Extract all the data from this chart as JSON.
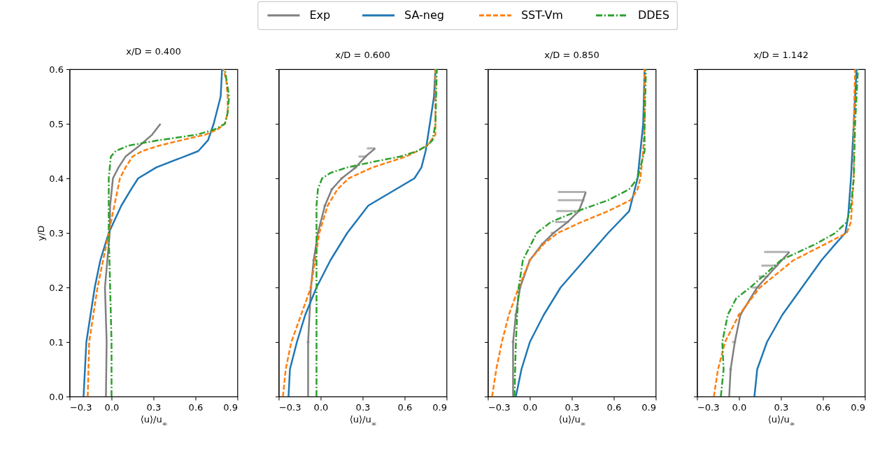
{
  "chart_data": [
    {
      "type": "line",
      "title": "x/D = 0.400",
      "xlabel": "⟨u⟩/u$_{∞}$",
      "ylabel": "y/D",
      "legend": "top",
      "grid": false,
      "xlim": [
        -0.3,
        0.9
      ],
      "xticks": [
        {
          "value": -0.3,
          "label": "−0.3"
        },
        {
          "value": 0,
          "label": "0.0"
        },
        {
          "value": 0.3,
          "label": "0.3"
        },
        {
          "value": 0.6,
          "label": "0.6"
        },
        {
          "value": 0.9,
          "label": "0.9"
        }
      ],
      "ylim": [
        0,
        0.6
      ],
      "yticks": [
        {
          "value": 0,
          "label": "0.0"
        },
        {
          "value": 0.1,
          "label": "0.1"
        },
        {
          "value": 0.2,
          "label": "0.2"
        },
        {
          "value": 0.3,
          "label": "0.3"
        },
        {
          "value": 0.4,
          "label": "0.4"
        },
        {
          "value": 0.5,
          "label": "0.5"
        },
        {
          "value": 0.6,
          "label": "0.6"
        }
      ],
      "series": [
        {
          "name": "Exp",
          "color": "#7f7f7f",
          "line_style": "solid",
          "x": [
            -0.04,
            -0.035,
            -0.047,
            -0.03,
            -0.013,
            -0.01,
            0.01,
            0.05,
            0.1,
            0.2,
            0.29,
            0.35
          ],
          "values": [
            0,
            0.1,
            0.2,
            0.25,
            0.3,
            0.35,
            0.4,
            0.42,
            0.44,
            0.46,
            0.48,
            0.5
          ]
        },
        {
          "name": "SA-neg",
          "color": "#1f77b4",
          "line_style": "solid",
          "x": [
            -0.2,
            -0.18,
            -0.12,
            -0.08,
            -0.02,
            0.07,
            0.14,
            0.19,
            0.32,
            0.52,
            0.62,
            0.69,
            0.73,
            0.78,
            0.79
          ],
          "values": [
            0,
            0.1,
            0.2,
            0.25,
            0.3,
            0.35,
            0.38,
            0.4,
            0.42,
            0.44,
            0.45,
            0.47,
            0.5,
            0.55,
            0.6
          ]
        },
        {
          "name": "SST-Vm",
          "color": "#ff7f0e",
          "line_style": "dashed",
          "x": [
            -0.17,
            -0.16,
            -0.1,
            -0.06,
            -0.02,
            0.02,
            0.06,
            0.1,
            0.15,
            0.22,
            0.34,
            0.5,
            0.67,
            0.76,
            0.81,
            0.83,
            0.83,
            0.82,
            0.8
          ],
          "values": [
            0,
            0.1,
            0.2,
            0.25,
            0.3,
            0.35,
            0.4,
            0.42,
            0.44,
            0.45,
            0.46,
            0.47,
            0.48,
            0.49,
            0.5,
            0.52,
            0.55,
            0.58,
            0.6
          ]
        },
        {
          "name": "DDES",
          "color": "#2ca02c",
          "line_style": "dashdot",
          "x": [
            0,
            0,
            -0.01,
            -0.02,
            -0.02,
            -0.02,
            -0.005,
            0.03,
            0.12,
            0.34,
            0.61,
            0.74,
            0.81,
            0.83,
            0.84,
            0.81
          ],
          "values": [
            0,
            0.1,
            0.2,
            0.3,
            0.35,
            0.4,
            0.44,
            0.45,
            0.46,
            0.47,
            0.48,
            0.49,
            0.5,
            0.52,
            0.55,
            0.6
          ]
        }
      ]
    },
    {
      "type": "line",
      "title": "x/D = 0.600",
      "xlabel": "⟨u⟩/u$_{∞}$",
      "tick_labels": "x",
      "grid": false,
      "xlim": [
        -0.3,
        0.9
      ],
      "xticks": [
        {
          "value": -0.3,
          "label": "−0.3"
        },
        {
          "value": 0,
          "label": "0.0"
        },
        {
          "value": 0.3,
          "label": "0.3"
        },
        {
          "value": 0.6,
          "label": "0.6"
        },
        {
          "value": 0.9,
          "label": "0.9"
        }
      ],
      "ylim": [
        0,
        0.6
      ],
      "yticks": [
        {
          "value": 0,
          "label": null
        },
        {
          "value": 0.1,
          "label": null
        },
        {
          "value": 0.2,
          "label": null
        },
        {
          "value": 0.3,
          "label": null
        },
        {
          "value": 0.4,
          "label": null
        },
        {
          "value": 0.5,
          "label": null
        },
        {
          "value": 0.6,
          "label": null
        }
      ],
      "series": [
        {
          "name": "Exp",
          "color": "#7f7f7f",
          "line_style": "solid",
          "x": [
            -0.09,
            -0.09,
            -0.07,
            -0.05,
            -0.02,
            0.03,
            0.08,
            0.15,
            0.25,
            0.32,
            0.39
          ],
          "values": [
            0,
            0.1,
            0.2,
            0.25,
            0.3,
            0.35,
            0.38,
            0.4,
            0.42,
            0.44,
            0.455
          ],
          "xerrors": [
            null,
            [
              -0.1,
              -0.08
            ],
            [
              -0.08,
              -0.06
            ],
            [
              -0.06,
              -0.04
            ],
            [
              -0.03,
              -0.01
            ],
            [
              0.02,
              0.04
            ],
            [
              0.07,
              0.09
            ],
            [
              0.14,
              0.16
            ],
            [
              0.23,
              0.26
            ],
            [
              0.27,
              0.33
            ],
            [
              0.33,
              0.39
            ]
          ]
        },
        {
          "name": "SA-neg",
          "color": "#1f77b4",
          "line_style": "solid",
          "x": [
            -0.23,
            -0.22,
            -0.17,
            -0.11,
            -0.03,
            0.07,
            0.19,
            0.34,
            0.67,
            0.72,
            0.75,
            0.78,
            0.81,
            0.82
          ],
          "values": [
            0,
            0.05,
            0.1,
            0.15,
            0.2,
            0.25,
            0.3,
            0.35,
            0.4,
            0.42,
            0.45,
            0.5,
            0.55,
            0.6
          ]
        },
        {
          "name": "SST-Vm",
          "color": "#ff7f0e",
          "line_style": "dashed",
          "x": [
            -0.27,
            -0.25,
            -0.21,
            -0.14,
            -0.07,
            -0.04,
            -0.01,
            0.05,
            0.12,
            0.2,
            0.37,
            0.61,
            0.69,
            0.76,
            0.82,
            0.82,
            0.82
          ],
          "values": [
            0,
            0.05,
            0.1,
            0.15,
            0.2,
            0.25,
            0.3,
            0.35,
            0.38,
            0.4,
            0.42,
            0.44,
            0.45,
            0.46,
            0.48,
            0.5,
            0.6
          ]
        },
        {
          "name": "DDES",
          "color": "#2ca02c",
          "line_style": "dashdot",
          "x": [
            -0.03,
            -0.03,
            -0.03,
            -0.03,
            -0.03,
            -0.02,
            0.01,
            0.07,
            0.19,
            0.37,
            0.57,
            0.69,
            0.76,
            0.8,
            0.82,
            0.83
          ],
          "values": [
            0,
            0.1,
            0.2,
            0.3,
            0.35,
            0.38,
            0.4,
            0.41,
            0.42,
            0.43,
            0.44,
            0.45,
            0.46,
            0.47,
            0.5,
            0.6
          ]
        }
      ]
    },
    {
      "type": "line",
      "title": "x/D = 0.850",
      "xlabel": "⟨u⟩/u$_{∞}$",
      "tick_labels": "x",
      "grid": false,
      "xlim": [
        -0.3,
        0.9
      ],
      "xticks": [
        {
          "value": -0.3,
          "label": "−0.3"
        },
        {
          "value": 0,
          "label": "0.0"
        },
        {
          "value": 0.3,
          "label": "0.3"
        },
        {
          "value": 0.6,
          "label": "0.6"
        },
        {
          "value": 0.9,
          "label": "0.9"
        }
      ],
      "ylim": [
        0,
        0.6
      ],
      "yticks": [
        {
          "value": 0,
          "label": null
        },
        {
          "value": 0.1,
          "label": null
        },
        {
          "value": 0.2,
          "label": null
        },
        {
          "value": 0.3,
          "label": null
        },
        {
          "value": 0.4,
          "label": null
        },
        {
          "value": 0.5,
          "label": null
        },
        {
          "value": 0.6,
          "label": null
        }
      ],
      "series": [
        {
          "name": "Exp",
          "color": "#7f7f7f",
          "line_style": "solid",
          "x": [
            -0.12,
            -0.12,
            -0.1,
            -0.07,
            0,
            0.09,
            0.17,
            0.27,
            0.35,
            0.38,
            0.4
          ],
          "values": [
            0,
            0.1,
            0.15,
            0.2,
            0.25,
            0.28,
            0.3,
            0.32,
            0.34,
            0.36,
            0.375
          ],
          "xerrors": [
            null,
            [
              -0.13,
              -0.11
            ],
            [
              -0.11,
              -0.09
            ],
            [
              -0.08,
              -0.06
            ],
            [
              -0.01,
              0.01
            ],
            [
              0.08,
              0.1
            ],
            [
              0.15,
              0.18
            ],
            [
              0.18,
              0.28
            ],
            [
              0.19,
              0.36
            ],
            [
              0.2,
              0.39
            ],
            [
              0.2,
              0.4
            ]
          ]
        },
        {
          "name": "SA-neg",
          "color": "#1f77b4",
          "line_style": "solid",
          "x": [
            -0.1,
            -0.06,
            0,
            0.1,
            0.22,
            0.39,
            0.56,
            0.71,
            0.73,
            0.77,
            0.79,
            0.81,
            0.82
          ],
          "values": [
            0,
            0.05,
            0.1,
            0.15,
            0.2,
            0.25,
            0.3,
            0.34,
            0.36,
            0.4,
            0.45,
            0.5,
            0.6
          ]
        },
        {
          "name": "SST-Vm",
          "color": "#ff7f0e",
          "line_style": "dashed",
          "x": [
            -0.27,
            -0.24,
            -0.2,
            -0.15,
            -0.08,
            0,
            0.1,
            0.2,
            0.37,
            0.56,
            0.72,
            0.77,
            0.79,
            0.81,
            0.82,
            0.82
          ],
          "values": [
            0,
            0.05,
            0.1,
            0.15,
            0.2,
            0.25,
            0.28,
            0.3,
            0.32,
            0.34,
            0.36,
            0.38,
            0.4,
            0.45,
            0.5,
            0.6
          ]
        },
        {
          "name": "DDES",
          "color": "#2ca02c",
          "line_style": "dashdot",
          "x": [
            -0.11,
            -0.1,
            -0.08,
            -0.05,
            0.05,
            0.15,
            0.34,
            0.56,
            0.71,
            0.77,
            0.82,
            0.82,
            0.83
          ],
          "values": [
            0,
            0.1,
            0.2,
            0.25,
            0.3,
            0.32,
            0.34,
            0.36,
            0.38,
            0.4,
            0.45,
            0.5,
            0.6
          ]
        }
      ]
    },
    {
      "type": "line",
      "title": "x/D = 1.142",
      "xlabel": "⟨u⟩/u$_{∞}$",
      "tick_labels": "x",
      "grid": false,
      "xlim": [
        -0.3,
        0.9
      ],
      "xticks": [
        {
          "value": -0.3,
          "label": "−0.3"
        },
        {
          "value": 0,
          "label": "0.0"
        },
        {
          "value": 0.3,
          "label": "0.3"
        },
        {
          "value": 0.6,
          "label": "0.6"
        },
        {
          "value": 0.9,
          "label": "0.9"
        }
      ],
      "ylim": [
        0,
        0.6
      ],
      "yticks": [
        {
          "value": 0,
          "label": null
        },
        {
          "value": 0.1,
          "label": null
        },
        {
          "value": 0.2,
          "label": null
        },
        {
          "value": 0.3,
          "label": null
        },
        {
          "value": 0.4,
          "label": null
        },
        {
          "value": 0.5,
          "label": null
        },
        {
          "value": 0.6,
          "label": null
        }
      ],
      "series": [
        {
          "name": "Exp",
          "color": "#7f7f7f",
          "line_style": "solid",
          "x": [
            -0.07,
            -0.06,
            -0.03,
            0.01,
            0.13,
            0.2,
            0.27,
            0.36
          ],
          "values": [
            0,
            0.05,
            0.1,
            0.15,
            0.2,
            0.22,
            0.24,
            0.265
          ],
          "xerrors": [
            null,
            [
              -0.07,
              -0.05
            ],
            [
              -0.05,
              -0.02
            ],
            [
              -0.01,
              0.02
            ],
            [
              0.09,
              0.15
            ],
            [
              0.14,
              0.21
            ],
            [
              0.16,
              0.28
            ],
            [
              0.18,
              0.36
            ]
          ]
        },
        {
          "name": "SA-neg",
          "color": "#1f77b4",
          "line_style": "solid",
          "x": [
            0.11,
            0.13,
            0.2,
            0.31,
            0.45,
            0.59,
            0.69,
            0.76,
            0.78,
            0.8,
            0.82,
            0.84
          ],
          "values": [
            0,
            0.05,
            0.1,
            0.15,
            0.2,
            0.25,
            0.28,
            0.3,
            0.33,
            0.4,
            0.5,
            0.6
          ]
        },
        {
          "name": "SST-Vm",
          "color": "#ff7f0e",
          "line_style": "dashed",
          "x": [
            -0.18,
            -0.15,
            -0.1,
            0,
            0.15,
            0.39,
            0.62,
            0.77,
            0.8,
            0.82,
            0.82,
            0.83
          ],
          "values": [
            0,
            0.05,
            0.1,
            0.15,
            0.2,
            0.25,
            0.28,
            0.3,
            0.32,
            0.4,
            0.5,
            0.6
          ]
        },
        {
          "name": "DDES",
          "color": "#2ca02c",
          "line_style": "dashdot",
          "x": [
            -0.13,
            -0.11,
            -0.12,
            -0.08,
            -0.02,
            0.08,
            0.3,
            0.55,
            0.69,
            0.77,
            0.8,
            0.82,
            0.83,
            0.85
          ],
          "values": [
            0,
            0.05,
            0.1,
            0.15,
            0.18,
            0.2,
            0.25,
            0.28,
            0.3,
            0.32,
            0.35,
            0.4,
            0.5,
            0.6
          ]
        }
      ]
    }
  ]
}
